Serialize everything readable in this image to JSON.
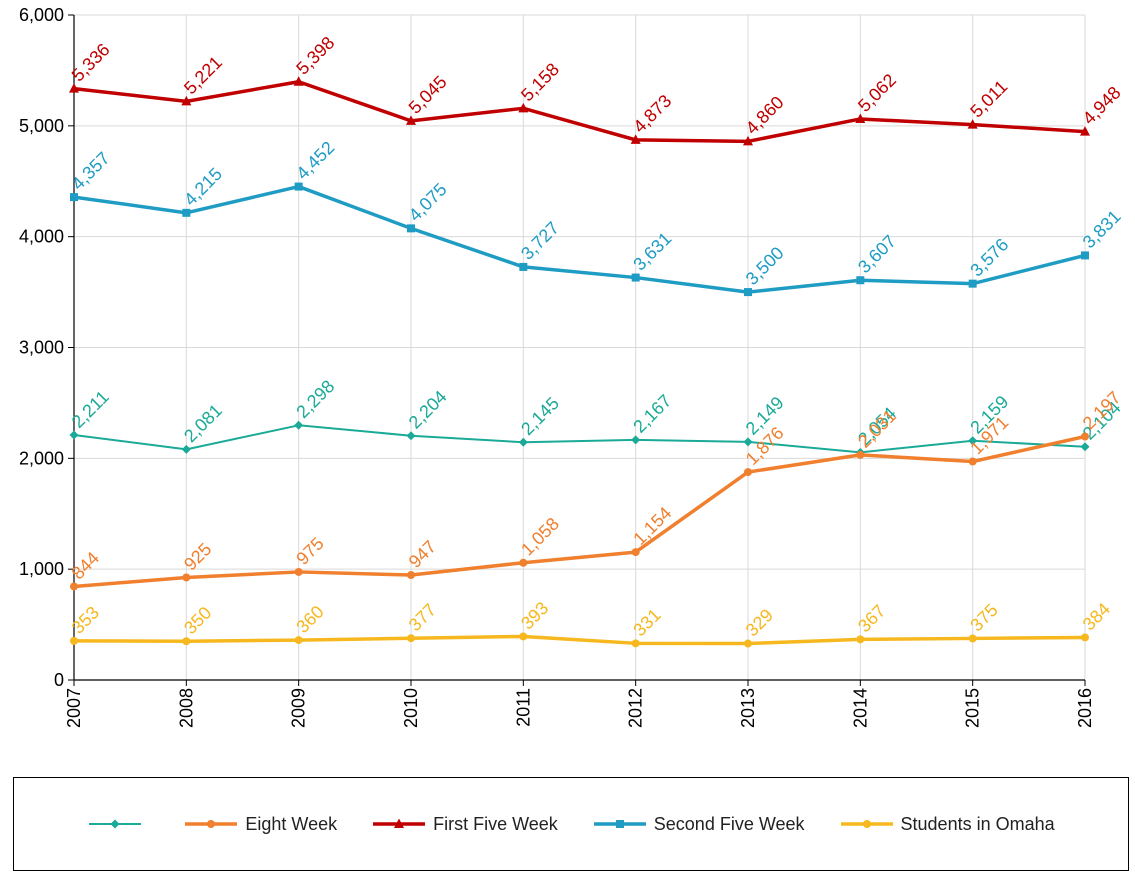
{
  "chart_data": {
    "type": "line",
    "title": "",
    "xlabel": "",
    "ylabel": "",
    "x": [
      "2007",
      "2008",
      "2009",
      "2010",
      "2011",
      "2012",
      "2013",
      "2014",
      "2015",
      "2016"
    ],
    "ylim": [
      0,
      6000
    ],
    "yticks": [
      "0",
      "1,000",
      "2,000",
      "3,000",
      "4,000",
      "5,000",
      "6,000"
    ],
    "grid": true,
    "legend_position": "bottom",
    "series": [
      {
        "name": "",
        "color": "#1aaa97",
        "marker": "diamond",
        "values": [
          2211,
          2081,
          2298,
          2204,
          2145,
          2167,
          2149,
          2054,
          2159,
          2104
        ],
        "labels": [
          "2,211",
          "2,081",
          "2,298",
          "2,204",
          "2,145",
          "2,167",
          "2,149",
          "2,054",
          "2,159",
          "2,104"
        ]
      },
      {
        "name": "Eight Week",
        "color": "#f07f2e",
        "marker": "circle",
        "values": [
          844,
          925,
          975,
          947,
          1058,
          1154,
          1876,
          2031,
          1971,
          2197
        ],
        "labels": [
          "844",
          "925",
          "975",
          "947",
          "1,058",
          "1,154",
          "1,876",
          "2,031",
          "1,971",
          "2,197"
        ]
      },
      {
        "name": "First Five Week",
        "color": "#c00000",
        "marker": "triangle",
        "values": [
          5336,
          5221,
          5398,
          5045,
          5158,
          4873,
          4860,
          5062,
          5011,
          4948
        ],
        "labels": [
          "5,336",
          "5,221",
          "5,398",
          "5,045",
          "5,158",
          "4,873",
          "4,860",
          "5,062",
          "5,011",
          "4,948"
        ]
      },
      {
        "name": "Second Five Week",
        "color": "#1f9cc4",
        "marker": "square",
        "values": [
          4357,
          4215,
          4452,
          4075,
          3727,
          3631,
          3500,
          3607,
          3576,
          3831
        ],
        "labels": [
          "4,357",
          "4,215",
          "4,452",
          "4,075",
          "3,727",
          "3,631",
          "3,500",
          "3,607",
          "3,576",
          "3,831"
        ]
      },
      {
        "name": "Students in Omaha",
        "color": "#f6b81e",
        "marker": "circle",
        "values": [
          353,
          350,
          360,
          377,
          393,
          331,
          329,
          367,
          375,
          384
        ],
        "labels": [
          "353",
          "350",
          "360",
          "377",
          "393",
          "331",
          "329",
          "367",
          "375",
          "384"
        ]
      }
    ]
  }
}
